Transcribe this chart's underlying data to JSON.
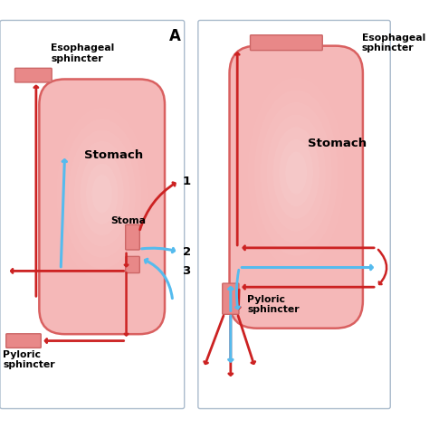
{
  "bg_color": "#ffffff",
  "stomach_fill": "#f5b8b8",
  "stomach_edge": "#d96060",
  "sphincter_color": "#e88888",
  "sphincter_edge": "#cc6666",
  "red_arrow": "#cc2222",
  "blue_arrow": "#55bbee",
  "panel_border": "#aabbcc",
  "label_A": "A",
  "label_stomach_L": "Stomach",
  "label_stomach_R": "Stomach",
  "label_eso_L": "Esophageal\nsphincter",
  "label_eso_R": "Esophageal\nsphincter",
  "label_stoma": "Stoma",
  "label_pyloric_L": "Pyloric\nsphincter",
  "label_pyloric_R": "Pyloric\nsphincter",
  "label_1": "1",
  "label_2": "2",
  "label_3": "3"
}
